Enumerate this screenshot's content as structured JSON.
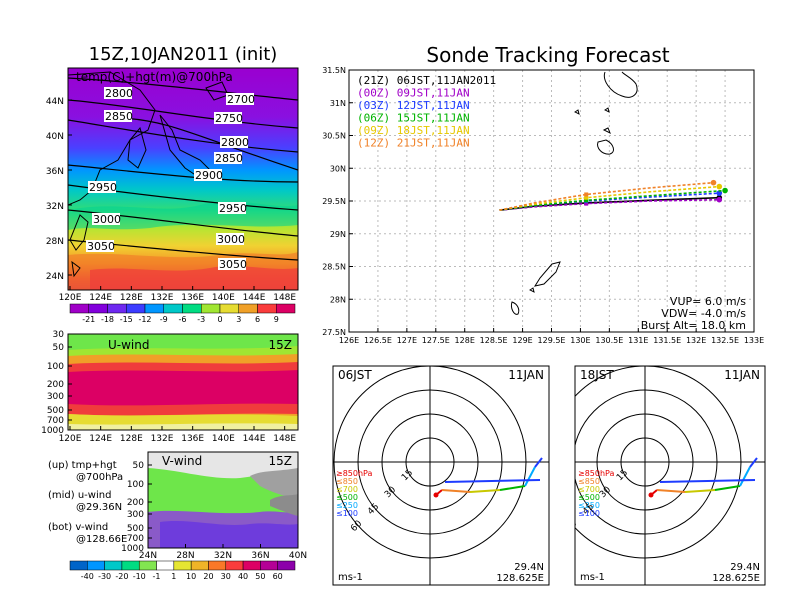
{
  "header": {
    "left_title": "15Z,10JAN2011 (init)",
    "right_title": "Sonde Tracking Forecast"
  },
  "temp_panel": {
    "label": "temp(C)+hgt(m)@700hPa",
    "lat_ticks": [
      "44N",
      "40N",
      "36N",
      "32N",
      "28N",
      "24N"
    ],
    "lon_ticks": [
      "120E",
      "124E",
      "128E",
      "132E",
      "136E",
      "140E",
      "144E",
      "148E"
    ],
    "contours": [
      {
        "label": "2700"
      },
      {
        "label": "2750"
      },
      {
        "label": "2800"
      },
      {
        "label": "2800"
      },
      {
        "label": "2850"
      },
      {
        "label": "2850"
      },
      {
        "label": "2900"
      },
      {
        "label": "2950"
      },
      {
        "label": "2950"
      },
      {
        "label": "3000"
      },
      {
        "label": "3000"
      },
      {
        "label": "3050"
      },
      {
        "label": "3050"
      }
    ],
    "colorbar": {
      "labels": [
        "-21",
        "-18",
        "-15",
        "-12",
        "-9",
        "-6",
        "-3",
        "0",
        "3",
        "6",
        "9"
      ],
      "colors": [
        "#a000c8",
        "#8200dc",
        "#6e28f0",
        "#3c3cff",
        "#0096ff",
        "#00c8c8",
        "#00dc82",
        "#a0e632",
        "#e6dc32",
        "#f0a028",
        "#fa3c3c",
        "#dc0064"
      ]
    }
  },
  "u_panel": {
    "label": "U-wind",
    "time": "15Z",
    "p_ticks": [
      "30",
      "50",
      "100",
      "200",
      "300",
      "500",
      "700",
      "1000"
    ],
    "lon_ticks": [
      "120E",
      "124E",
      "128E",
      "132E",
      "136E",
      "140E",
      "144E",
      "148E"
    ]
  },
  "v_panel": {
    "label": "V-wind",
    "time": "15Z",
    "p_ticks": [
      "50",
      "100",
      "200",
      "300",
      "500",
      "700",
      "1000"
    ],
    "lat_ticks": [
      "24N",
      "28N",
      "32N",
      "36N",
      "40N"
    ]
  },
  "legend_text": {
    "up_line1": "(up) tmp+hgt",
    "up_line2": "@700hPa",
    "mid_line1": "(mid) u-wind",
    "mid_line2": "@29.36N",
    "bot_line1": "(bot) v-wind",
    "bot_line2": "@128.66E"
  },
  "wind_colorbar": {
    "labels": [
      "-40",
      "-30",
      "-20",
      "-10",
      "-1",
      "1",
      "10",
      "20",
      "30",
      "40",
      "50",
      "60"
    ],
    "colors": [
      "#0064c8",
      "#0096ff",
      "#00c8c8",
      "#00dc82",
      "#82e650",
      "#ffffff",
      "#e6e632",
      "#f0b428",
      "#fa7828",
      "#fa3c3c",
      "#dc0064",
      "#b40096",
      "#8c00aa"
    ]
  },
  "track_panel": {
    "lat_ticks": [
      "31.5N",
      "31N",
      "30.5N",
      "30N",
      "29.5N",
      "29N",
      "28.5N",
      "28N",
      "27.5N"
    ],
    "lon_ticks": [
      "126E",
      "126.5E",
      "127E",
      "127.5E",
      "128E",
      "128.5E",
      "129E",
      "129.5E",
      "130E",
      "130.5E",
      "131E",
      "131.5E",
      "132E",
      "132.5E",
      "133E"
    ],
    "legend": [
      {
        "text": "(21Z) 06JST,11JAN2011",
        "color": "#000000"
      },
      {
        "text": "(00Z) 09JST,11JAN",
        "color": "#a000c8"
      },
      {
        "text": "(03Z) 12JST,11JAN",
        "color": "#1e3cff"
      },
      {
        "text": "(06Z) 15JST,11JAN",
        "color": "#00b400"
      },
      {
        "text": "(09Z) 18JST,11JAN",
        "color": "#e6c800"
      },
      {
        "text": "(12Z) 21JST,11JAN",
        "color": "#f08228"
      }
    ],
    "vup": "VUP= 6.0 m/s",
    "vdw": "VDW= -4.0 m/s",
    "burst": "Burst Alt= 18.0 km"
  },
  "chart_data": {
    "type": "line",
    "title": "Sonde Tracking Forecast",
    "xlim": [
      126,
      133
    ],
    "ylim": [
      27.5,
      31.5
    ],
    "series": [
      {
        "name": "(21Z) 06JST,11JAN2011",
        "x": [
          128.6,
          129.2,
          130.1,
          131.2,
          132.4
        ],
        "y": [
          29.36,
          29.42,
          29.47,
          29.51,
          29.55
        ]
      },
      {
        "name": "(00Z) 09JST,11JAN",
        "x": [
          128.6,
          129.2,
          130.1,
          131.2,
          132.4
        ],
        "y": [
          29.36,
          29.41,
          29.46,
          29.5,
          29.52
        ]
      },
      {
        "name": "(03Z) 12JST,11JAN",
        "x": [
          128.6,
          129.2,
          130.1,
          131.2,
          132.4
        ],
        "y": [
          29.36,
          29.43,
          29.5,
          29.56,
          29.62
        ]
      },
      {
        "name": "(06Z) 15JST,11JAN",
        "x": [
          128.6,
          129.2,
          130.1,
          131.2,
          132.5
        ],
        "y": [
          29.36,
          29.43,
          29.51,
          29.58,
          29.66
        ]
      },
      {
        "name": "(09Z) 18JST,11JAN",
        "x": [
          128.6,
          129.2,
          130.1,
          131.2,
          132.4
        ],
        "y": [
          29.36,
          29.45,
          29.55,
          29.64,
          29.72
        ]
      },
      {
        "name": "(12Z) 21JST,11JAN",
        "x": [
          128.6,
          129.2,
          130.1,
          131.2,
          132.3
        ],
        "y": [
          29.36,
          29.47,
          29.6,
          29.7,
          29.78
        ]
      }
    ]
  },
  "hodograph_left": {
    "time": "06JST",
    "date": "11JAN",
    "rings": [
      "15",
      "30",
      "45",
      "60"
    ],
    "levels": [
      "≥850hPa",
      "≤850",
      "≤700",
      "≤500",
      "≤250",
      "≤100"
    ],
    "level_colors": [
      "#e60000",
      "#f08228",
      "#c8c800",
      "#00b400",
      "#00aaff",
      "#1e3cff"
    ],
    "lat": "29.4N",
    "lon": "128.625E",
    "unit": "ms-1"
  },
  "hodograph_right": {
    "time": "18JST",
    "date": "11JAN",
    "rings": [
      "15",
      "30",
      "45",
      "60"
    ],
    "levels": [
      "≥850hPa",
      "≤850",
      "≤700",
      "≤500",
      "≤250",
      "≤100"
    ],
    "level_colors": [
      "#e60000",
      "#f08228",
      "#c8c800",
      "#00b400",
      "#00aaff",
      "#1e3cff"
    ],
    "lat": "29.4N",
    "lon": "128.625E",
    "unit": "ms-1"
  }
}
